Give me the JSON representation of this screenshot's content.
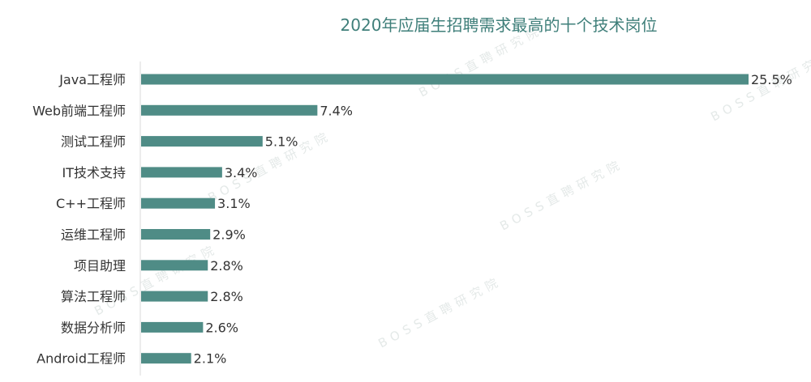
{
  "watermark": {
    "text": "BOSS直聘研究院"
  },
  "colors": {
    "bar": "#4f8c86",
    "title": "#3f7f7a",
    "axis": "#d9d9d9",
    "text": "#333333"
  },
  "chart_data": {
    "type": "bar",
    "orientation": "horizontal",
    "title": "2020年应届生招聘需求最高的十个技术岗位",
    "categories": [
      "Java工程师",
      "Web前端工程师",
      "测试工程师",
      "IT技术支持",
      "C++工程师",
      "运维工程师",
      "项目助理",
      "算法工程师",
      "数据分析师",
      "Android工程师"
    ],
    "values": [
      25.5,
      7.4,
      5.1,
      3.4,
      3.1,
      2.9,
      2.8,
      2.8,
      2.6,
      2.1
    ],
    "value_labels": [
      "25.5%",
      "7.4%",
      "5.1%",
      "3.4%",
      "3.1%",
      "2.9%",
      "2.8%",
      "2.8%",
      "2.6%",
      "2.1%"
    ],
    "xlim": [
      0,
      25.5
    ],
    "grid": false,
    "legend": "none"
  }
}
